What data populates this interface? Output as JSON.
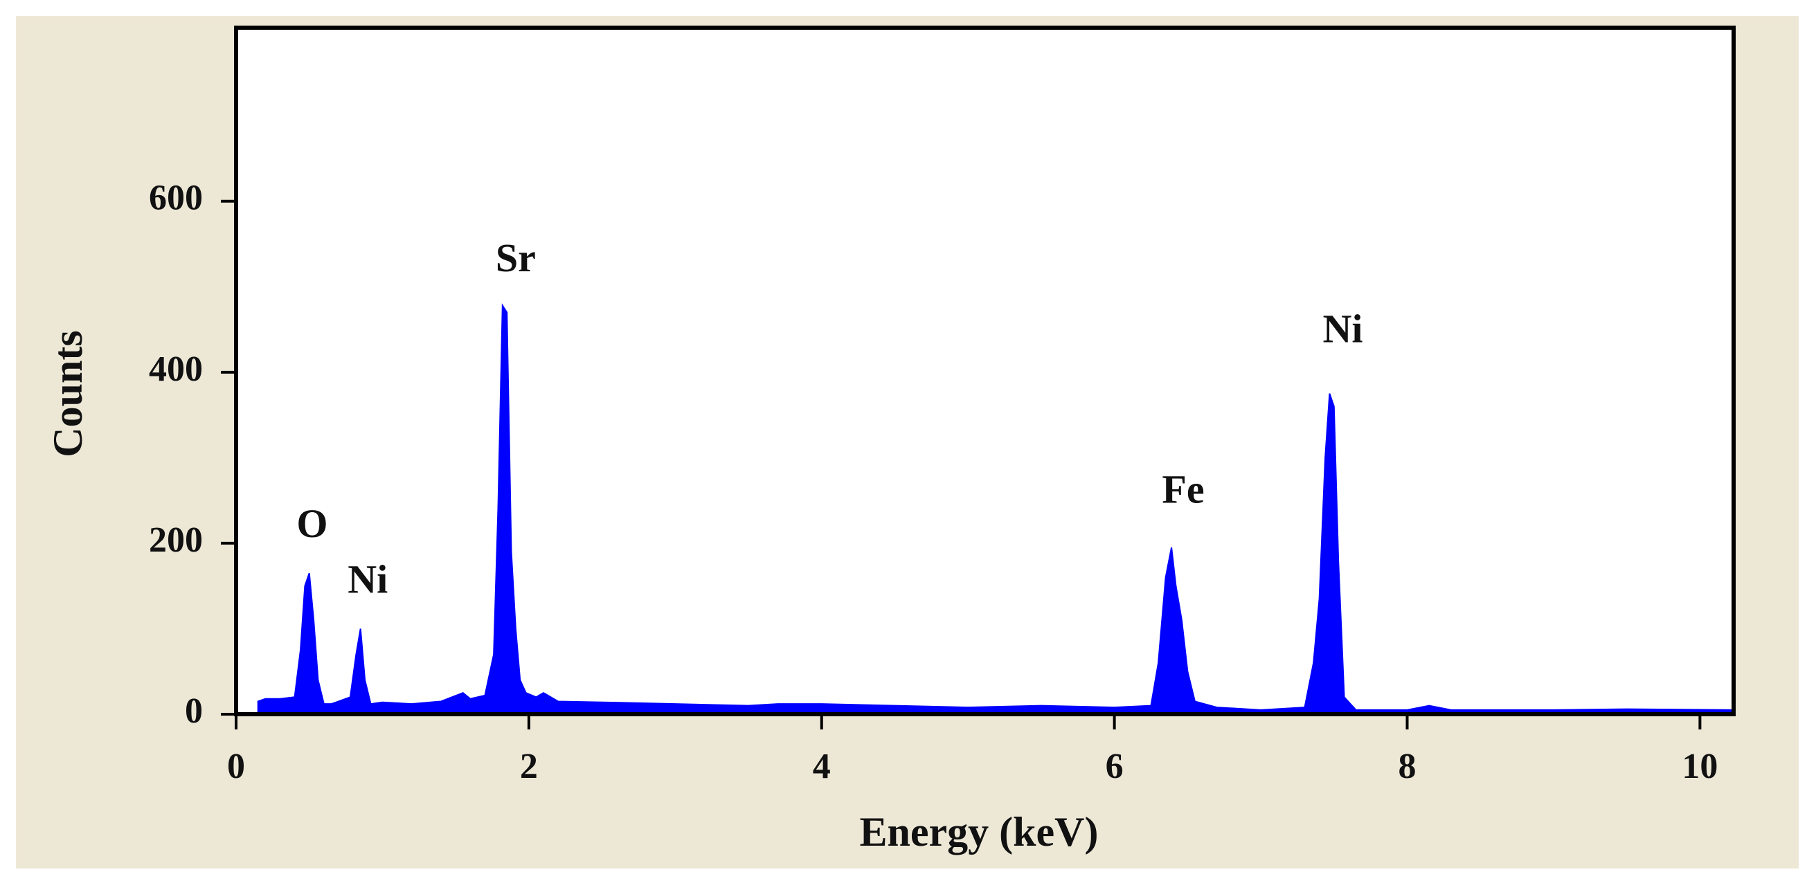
{
  "chart_data": {
    "type": "area",
    "x_label": "Energy (keV)",
    "y_label": "Counts",
    "x": [
      0.15,
      0.2,
      0.3,
      0.4,
      0.44,
      0.47,
      0.5,
      0.53,
      0.56,
      0.6,
      0.65,
      0.7,
      0.78,
      0.82,
      0.85,
      0.88,
      0.92,
      1.0,
      1.2,
      1.4,
      1.55,
      1.6,
      1.7,
      1.76,
      1.79,
      1.82,
      1.85,
      1.88,
      1.91,
      1.94,
      1.98,
      2.05,
      2.1,
      2.2,
      2.5,
      3.0,
      3.5,
      3.7,
      4.0,
      4.5,
      5.0,
      5.5,
      6.0,
      6.25,
      6.3,
      6.35,
      6.39,
      6.42,
      6.46,
      6.5,
      6.55,
      6.7,
      7.0,
      7.3,
      7.36,
      7.4,
      7.44,
      7.47,
      7.5,
      7.53,
      7.57,
      7.65,
      8.0,
      8.15,
      8.3,
      9.0,
      9.5,
      10.23
    ],
    "values": [
      15,
      18,
      18,
      20,
      75,
      150,
      165,
      110,
      40,
      12,
      12,
      15,
      20,
      70,
      100,
      40,
      12,
      14,
      12,
      15,
      25,
      18,
      22,
      70,
      240,
      478,
      470,
      190,
      100,
      40,
      25,
      20,
      25,
      15,
      14,
      12,
      10,
      12,
      12,
      10,
      8,
      10,
      8,
      10,
      60,
      160,
      195,
      150,
      110,
      50,
      15,
      8,
      5,
      8,
      60,
      135,
      300,
      375,
      360,
      180,
      20,
      5,
      5,
      10,
      5,
      5,
      6,
      5
    ],
    "color": "#0000ff",
    "annotations": [
      "O",
      "Ni",
      "Sr",
      "Fe",
      "Ni"
    ],
    "xlim": [
      0,
      10.23
    ],
    "ylim": [
      0,
      803
    ],
    "xticks": [
      0,
      2,
      4,
      6,
      8,
      10
    ],
    "yticks": [
      0,
      200,
      400,
      600
    ]
  }
}
